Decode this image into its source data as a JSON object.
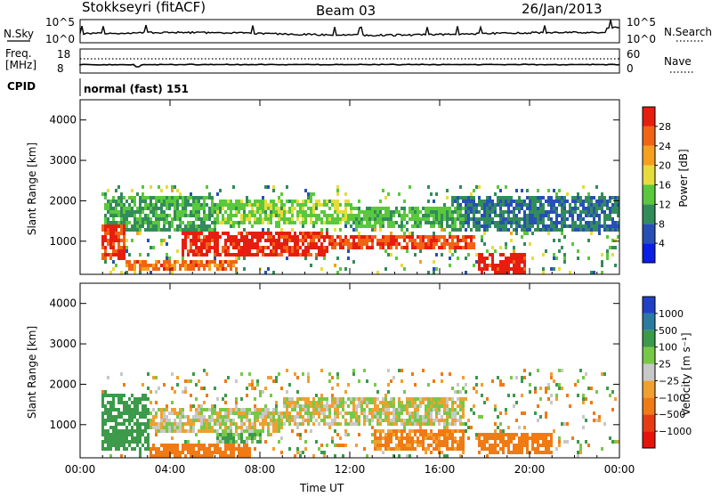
{
  "header": {
    "station": "Stokkseyri (fitACF)",
    "beam": "Beam 03",
    "date": "26/Jan/2013"
  },
  "noise_panel": {
    "left_label": "N.Sky",
    "right_label": "N.Search",
    "ticks": [
      "10^5",
      "10^0"
    ]
  },
  "freq_panel": {
    "left_label_1": "Freq.",
    "left_label_2": "[MHz]",
    "left_ticks": [
      "18",
      "8"
    ],
    "right_label": "Nave",
    "right_ticks": [
      "60",
      "0"
    ]
  },
  "cpid_panel": {
    "label": "CPID",
    "mode": "normal (fast) 151"
  },
  "chart_data": [
    {
      "type": "heatmap",
      "ylabel": "Slant Range [km]",
      "x_ticks": [
        "00:00",
        "04:00",
        "08:00",
        "12:00",
        "16:00",
        "20:00",
        "00:00"
      ],
      "y_ticks": [
        "1000",
        "2000",
        "3000",
        "4000"
      ],
      "xlim": [
        0,
        24
      ],
      "ylim": [
        180,
        4500
      ],
      "colorbar": {
        "label": "Power [dB]",
        "ticks": [
          "4",
          "8",
          "12",
          "16",
          "20",
          "24",
          "28"
        ],
        "range": [
          0,
          30
        ],
        "colors": [
          "#0a1ee6",
          "#2850b4",
          "#328c5a",
          "#5ac83c",
          "#e6dc3c",
          "#f5a01e",
          "#f06414",
          "#e61e0f"
        ]
      },
      "regions": [
        {
          "t": [
            0.9,
            2.0
          ],
          "r": [
            600,
            1500
          ],
          "v": 27
        },
        {
          "t": [
            2.0,
            7.0
          ],
          "r": [
            300,
            600
          ],
          "v": 24
        },
        {
          "t": [
            4.5,
            11.0
          ],
          "r": [
            700,
            1300
          ],
          "v": 28
        },
        {
          "t": [
            11.0,
            17.5
          ],
          "r": [
            800,
            1200
          ],
          "v": 26
        },
        {
          "t": [
            17.7,
            19.8
          ],
          "r": [
            250,
            750
          ],
          "v": 29
        },
        {
          "t": [
            6.0,
            12.0
          ],
          "r": [
            1500,
            2100
          ],
          "v": 14
        },
        {
          "t": [
            12.0,
            17.0
          ],
          "r": [
            1400,
            1900
          ],
          "v": 12
        },
        {
          "t": [
            16.5,
            24.0
          ],
          "r": [
            1300,
            2200
          ],
          "v": 8
        },
        {
          "t": [
            1.0,
            6.0
          ],
          "r": [
            1300,
            2200
          ],
          "v": 11
        }
      ]
    },
    {
      "type": "heatmap",
      "ylabel": "Slant Range [km]",
      "xlabel": "Time UT",
      "x_ticks": [
        "00:00",
        "04:00",
        "08:00",
        "12:00",
        "16:00",
        "20:00",
        "00:00"
      ],
      "y_ticks": [
        "1000",
        "2000",
        "3000",
        "4000"
      ],
      "xlim": [
        0,
        24
      ],
      "ylim": [
        180,
        4500
      ],
      "colorbar": {
        "label": "Velocity [m s⁻¹]",
        "ticks": [
          "1000",
          "500",
          "100",
          "25",
          "−25",
          "−100",
          "−500",
          "−1000"
        ],
        "colors": [
          "#2040c8",
          "#2c7aa0",
          "#3c9a4a",
          "#78c848",
          "#c8c8c8",
          "#f0a030",
          "#f07a14",
          "#e63c14",
          "#e6140a"
        ]
      },
      "regions": [
        {
          "t": [
            0.9,
            3.0
          ],
          "r": [
            400,
            1800
          ],
          "v": 200
        },
        {
          "t": [
            3.0,
            9.0
          ],
          "r": [
            800,
            1500
          ],
          "v": 0
        },
        {
          "t": [
            9.0,
            17.0
          ],
          "r": [
            1000,
            1700
          ],
          "v": 0
        },
        {
          "t": [
            3.0,
            7.5
          ],
          "r": [
            250,
            600
          ],
          "v": -200
        },
        {
          "t": [
            17.7,
            21.0
          ],
          "r": [
            300,
            800
          ],
          "v": -300
        },
        {
          "t": [
            13.0,
            17.0
          ],
          "r": [
            400,
            900
          ],
          "v": -150
        },
        {
          "t": [
            6.0,
            8.0
          ],
          "r": [
            600,
            1400
          ],
          "v": 100
        }
      ]
    }
  ]
}
